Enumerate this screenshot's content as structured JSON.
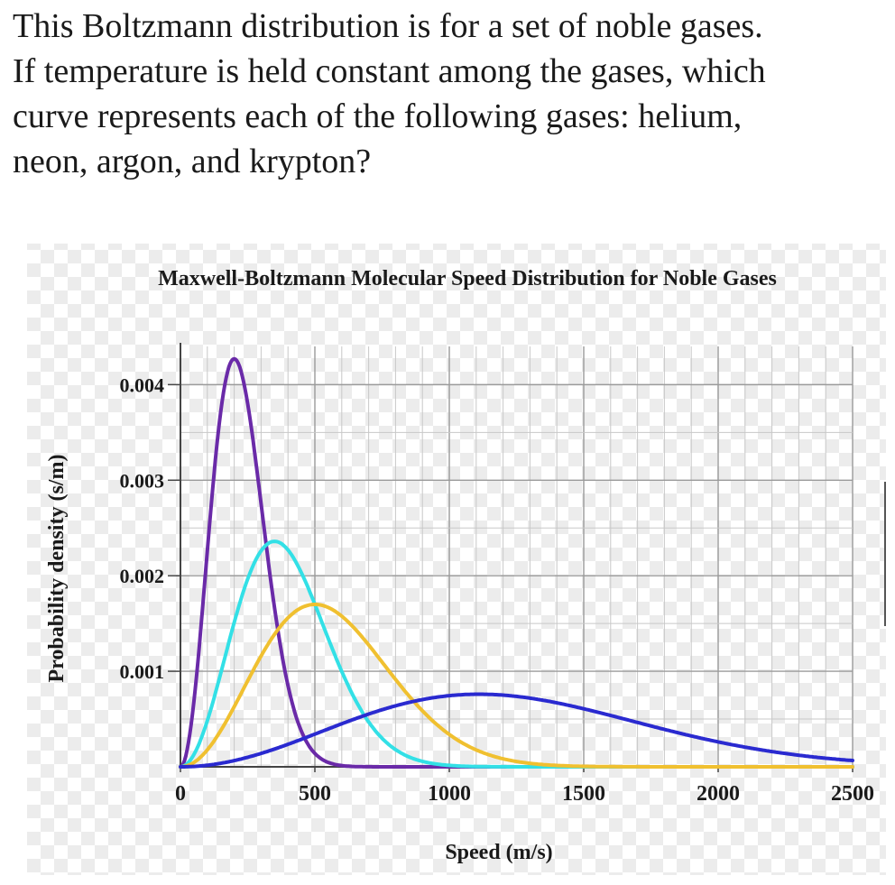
{
  "question": {
    "lines": [
      "This Boltzmann distribution is for a set of noble gases.",
      "If temperature is held constant among the gases, which",
      "curve represents each of the following gases: helium,",
      "neon, argon, and krypton?"
    ]
  },
  "chart_data": {
    "type": "line",
    "title": "Maxwell-Boltzmann Molecular Speed Distribution for Noble Gases",
    "xlabel": "Speed (m/s)",
    "ylabel": "Probability density (s/m)",
    "xlim": [
      0,
      2500
    ],
    "ylim": [
      0,
      0.0044
    ],
    "xticks": [
      0,
      500,
      1000,
      1500,
      2000,
      2500
    ],
    "xtick_labels": [
      "0",
      "500",
      "1000",
      "1500",
      "2000",
      "2500"
    ],
    "yticks": [
      0.001,
      0.002,
      0.003,
      0.004
    ],
    "ytick_labels": [
      "0.001",
      "0.002",
      "0.003",
      "0.004"
    ],
    "grid": true,
    "series": [
      {
        "color": "#6a2aa8",
        "peak_speed": 200,
        "peak_density": 0.00427
      },
      {
        "color": "#33e0e6",
        "peak_speed": 350,
        "peak_density": 0.00236
      },
      {
        "color": "#f0c030",
        "peak_speed": 500,
        "peak_density": 0.0017
      },
      {
        "color": "#2a2ad0",
        "peak_speed": 1110,
        "peak_density": 0.00076
      }
    ]
  }
}
